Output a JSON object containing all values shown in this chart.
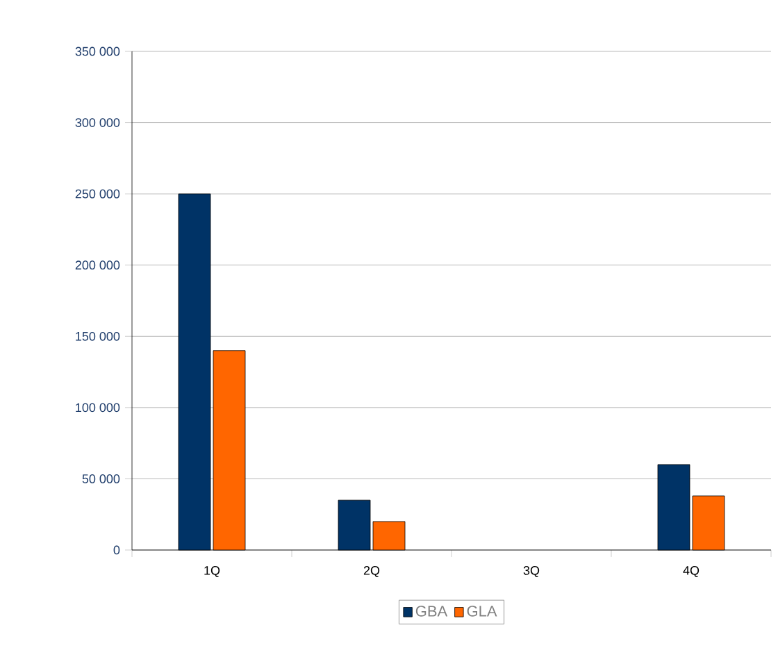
{
  "chart_data": {
    "type": "bar",
    "categories": [
      "1Q",
      "2Q",
      "3Q",
      "4Q"
    ],
    "series": [
      {
        "name": "GBA",
        "color": "#003366",
        "values": [
          250000,
          35000,
          null,
          60000
        ]
      },
      {
        "name": "GLA",
        "color": "#ff6600",
        "values": [
          140000,
          20000,
          null,
          38000
        ]
      }
    ],
    "ylim": [
      0,
      350000
    ],
    "yticks": [
      0,
      {
        "value": 50000,
        "label": "50 000"
      },
      {
        "value": 100000,
        "label": "100 000"
      },
      {
        "value": 150000,
        "label": "150 000"
      },
      {
        "value": 200000,
        "label": "200 000"
      },
      {
        "value": 250000,
        "label": "250 000"
      },
      {
        "value": 300000,
        "label": "300 000"
      },
      {
        "value": 350000,
        "label": "350 000"
      }
    ],
    "grid": "y",
    "legend": "bottom"
  }
}
